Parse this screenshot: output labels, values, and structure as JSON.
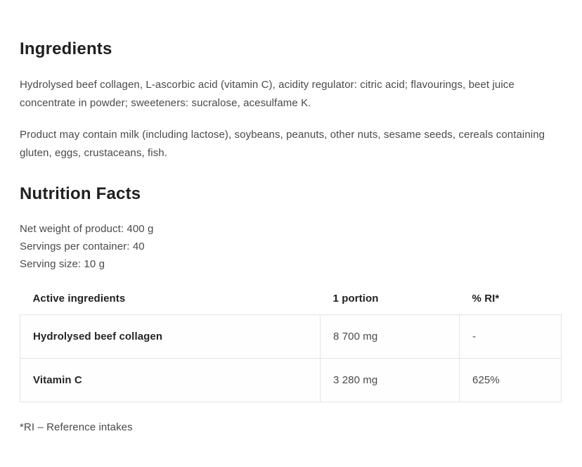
{
  "ingredients_section": {
    "title": "Ingredients",
    "paragraph1": "Hydrolysed beef collagen, L-ascorbic acid (vitamin C), acidity regulator: citric acid; flavourings, beet juice concentrate in powder; sweeteners: sucralose, acesulfame K.",
    "paragraph2": "Product may contain milk (including lactose), soybeans, peanuts, other nuts, sesame seeds, cereals containing gluten, eggs, crustaceans, fish."
  },
  "nutrition_section": {
    "title": "Nutrition Facts",
    "net_weight": "Net weight of product: 400 g",
    "servings_per_container": "Servings per container: 40",
    "serving_size": "Serving size: 10 g",
    "footnote": "*RI – Reference intakes"
  },
  "chart_data": {
    "type": "table",
    "title": "Nutrition Facts",
    "headers": [
      "Active ingredients",
      "1 portion",
      "% RI*"
    ],
    "rows": [
      {
        "name": "Hydrolysed beef collagen",
        "portion": "8 700 mg",
        "ri": "-"
      },
      {
        "name": "Vitamin C",
        "portion": "3 280 mg",
        "ri": "625%"
      }
    ]
  },
  "colors": {
    "heading_text": "#1f1f1f",
    "body_text": "#4a4a4a",
    "table_border": "#e3e3e3",
    "background": "#ffffff"
  }
}
